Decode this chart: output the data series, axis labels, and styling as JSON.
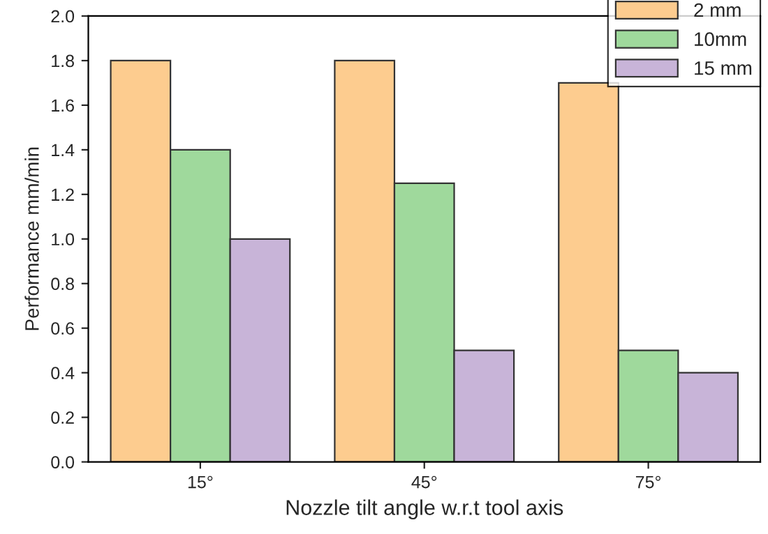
{
  "chart_data": {
    "type": "bar",
    "xlabel": "Nozzle tilt angle w.r.t tool axis",
    "ylabel": "Performance mm/min",
    "categories": [
      "15°",
      "45°",
      "75°"
    ],
    "series": [
      {
        "name": "2 mm",
        "color": "#fdcc8f",
        "values": [
          1.8,
          1.8,
          1.7
        ]
      },
      {
        "name": "10mm",
        "color": "#9fd99c",
        "values": [
          1.4,
          1.25,
          0.5
        ]
      },
      {
        "name": "15 mm",
        "color": "#c8b4d8",
        "values": [
          1.0,
          0.5,
          0.4
        ]
      }
    ],
    "ylim": [
      0,
      2.0
    ],
    "yticks": [
      {
        "value": 0,
        "label": "0.0"
      },
      {
        "value": 0.2,
        "label": "0.2"
      },
      {
        "value": 0.4,
        "label": "0.4"
      },
      {
        "value": 0.6,
        "label": "0.6"
      },
      {
        "value": 0.8,
        "label": "0.8"
      },
      {
        "value": 1.0,
        "label": "1.0"
      },
      {
        "value": 1.2,
        "label": "1.2"
      },
      {
        "value": 1.4,
        "label": "1.4"
      },
      {
        "value": 1.6,
        "label": "1.6"
      },
      {
        "value": 1.8,
        "label": "1.8"
      },
      {
        "value": 2.0,
        "label": "2.0"
      }
    ],
    "grid": false,
    "legend": "top right"
  }
}
